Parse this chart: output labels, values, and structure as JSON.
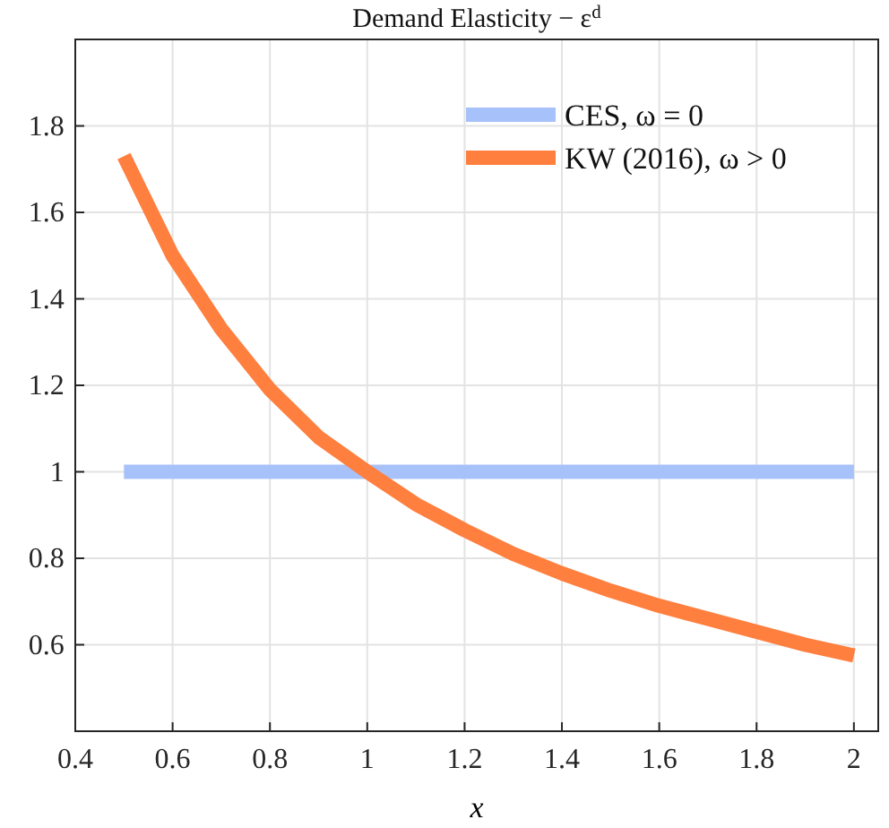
{
  "chart_data": {
    "type": "line",
    "title": "Demand Elasticity − ε$^{d}$",
    "xlabel": "x",
    "xlim": [
      0.4,
      2.05
    ],
    "ylim": [
      0.4,
      2
    ],
    "xticks": [
      0.4,
      0.6,
      0.8,
      1,
      1.2,
      1.4,
      1.6,
      1.8,
      2
    ],
    "yticks": [
      0.6,
      0.8,
      1,
      1.2,
      1.4,
      1.6,
      1.8
    ],
    "grid": true,
    "legend": "top right",
    "line_style": "solid",
    "marker": "none",
    "series": [
      {
        "name": "CES, ω = 0",
        "color": "#a7c1fa",
        "x": [
          0.5,
          2
        ],
        "values": [
          1,
          1
        ]
      },
      {
        "name": "KW (2016), ω > 0",
        "color": "#ff7f3f",
        "x": [
          0.5,
          0.6,
          0.7,
          0.8,
          0.9,
          1,
          1.1,
          1.2,
          1.3,
          1.4,
          1.5,
          1.6,
          1.7,
          1.8,
          1.9,
          2
        ],
        "values": [
          1.73,
          1.5,
          1.33,
          1.19,
          1.08,
          1,
          0.925,
          0.865,
          0.81,
          0.765,
          0.725,
          0.69,
          0.66,
          0.63,
          0.6,
          0.575
        ]
      }
    ]
  }
}
